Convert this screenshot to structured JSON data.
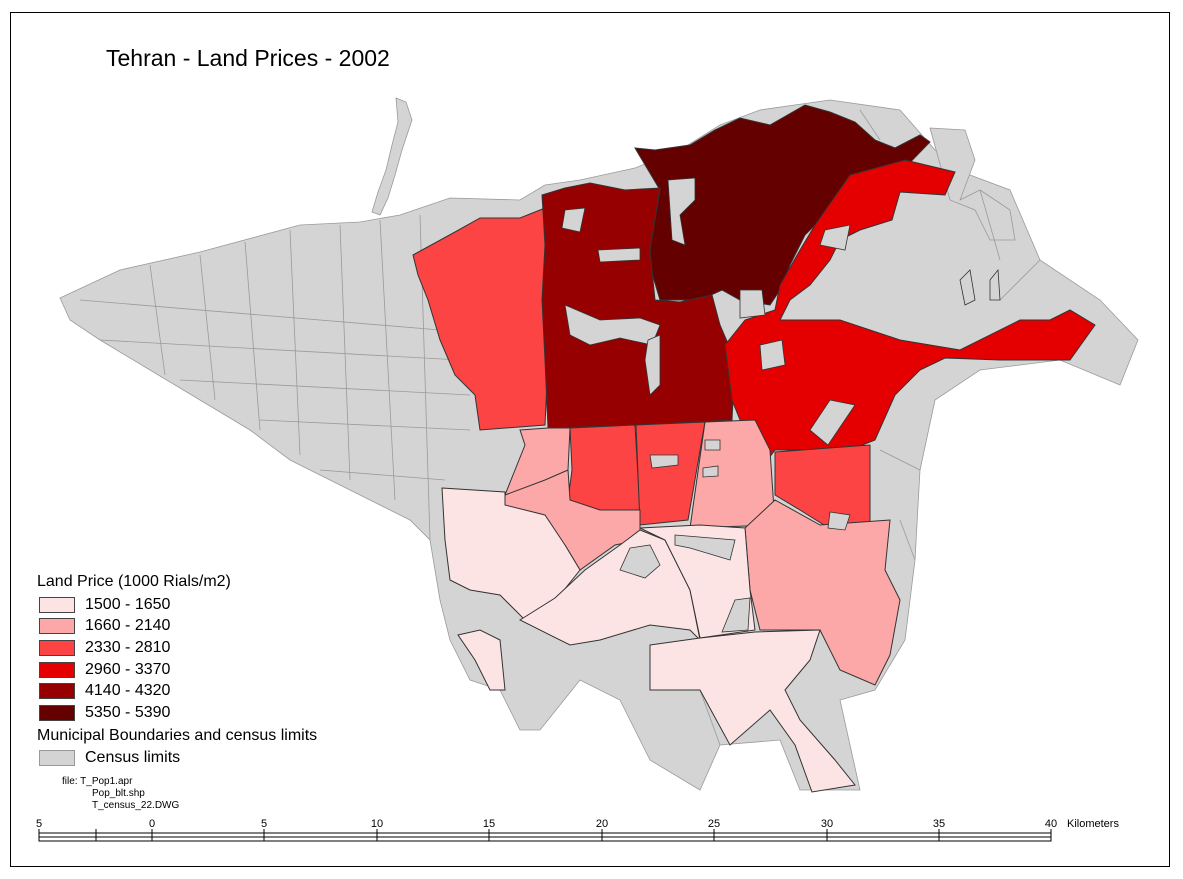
{
  "map": {
    "title": "Tehran - Land Prices - 2002",
    "colors": {
      "background_limits": "#d4d4d4",
      "c1": "#fde4e4",
      "c2": "#fca8a8",
      "c3": "#fc4444",
      "c4": "#e40000",
      "c5": "#960000",
      "c6": "#640000"
    }
  },
  "legend": {
    "title": "Land Price (1000 Rials/m2)",
    "classes": [
      {
        "label": "1500 - 1650",
        "color": "#fde4e4"
      },
      {
        "label": "1660 - 2140",
        "color": "#fca8a8"
      },
      {
        "label": "2330 - 2810",
        "color": "#fc4444"
      },
      {
        "label": "2960 - 3370",
        "color": "#e40000"
      },
      {
        "label": "4140 - 4320",
        "color": "#960000"
      },
      {
        "label": "5350 - 5390",
        "color": "#640000"
      }
    ],
    "boundaries_title": "Municipal Boundaries and census limits",
    "census_label": "Census limits",
    "census_color": "#d4d4d4"
  },
  "file_info": {
    "line1": "file: T_Pop1.apr",
    "line2": "Pop_blt.shp",
    "line3": "T_census_22.DWG"
  },
  "scale_bar": {
    "ticks": [
      "5",
      "0",
      "5",
      "10",
      "15",
      "20",
      "25",
      "30",
      "35",
      "40"
    ],
    "unit": "Kilometers"
  }
}
